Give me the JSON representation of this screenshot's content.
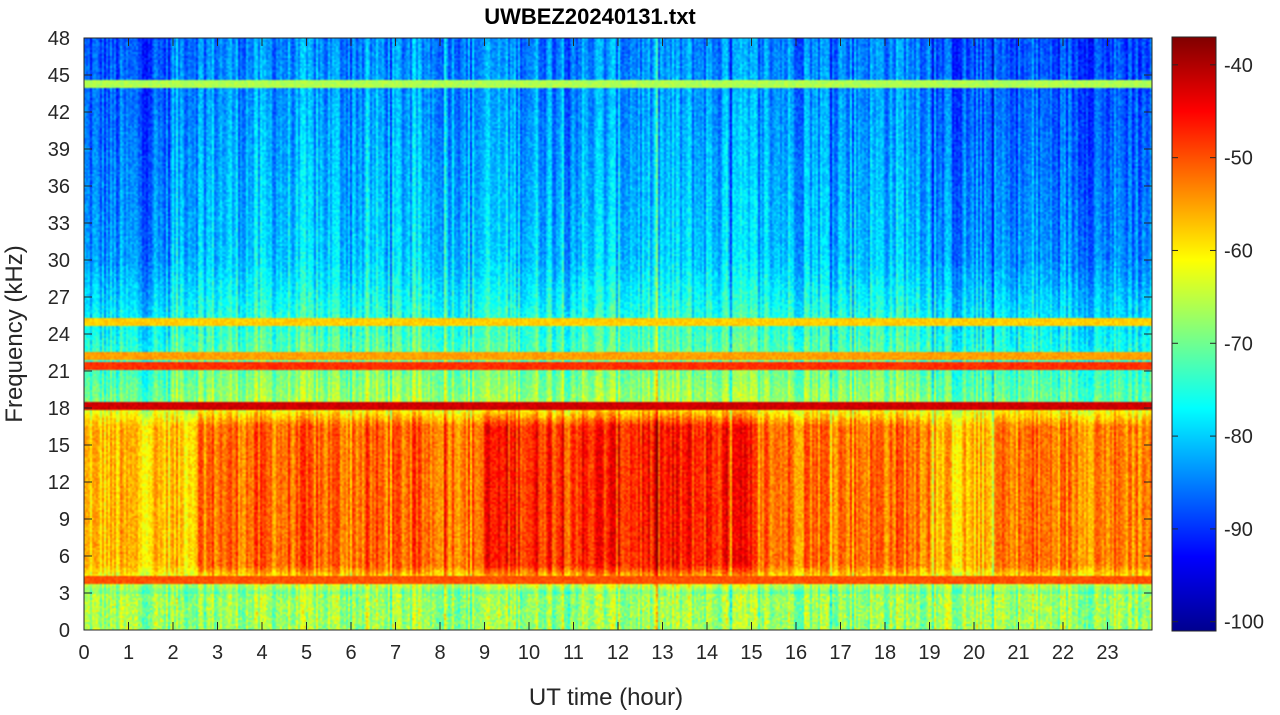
{
  "chart_data": {
    "type": "heatmap",
    "title": "UWBEZ20240131.txt",
    "xlabel": "UT time (hour)",
    "ylabel": "Frequency (kHz)",
    "xlim": [
      0,
      24
    ],
    "ylim": [
      0,
      48
    ],
    "x_ticks": [
      "0",
      "1",
      "2",
      "3",
      "4",
      "5",
      "6",
      "7",
      "8",
      "9",
      "10",
      "11",
      "12",
      "13",
      "14",
      "15",
      "16",
      "17",
      "18",
      "19",
      "20",
      "21",
      "22",
      "23"
    ],
    "y_ticks": [
      "0",
      "3",
      "6",
      "9",
      "12",
      "15",
      "18",
      "21",
      "24",
      "27",
      "30",
      "33",
      "36",
      "39",
      "42",
      "45",
      "48"
    ],
    "colorbar": {
      "label": "",
      "range": [
        -101,
        -37
      ],
      "ticks": [
        "-40",
        "-50",
        "-60",
        "-70",
        "-80",
        "-90",
        "-100"
      ],
      "colormap": "jet"
    },
    "grid": false,
    "features": {
      "broadband_band_khz": [
        4,
        18
      ],
      "broadband_peak_db": -47,
      "background_high_freq_db": -80,
      "narrowband_lines_khz": [
        {
          "freq": 4.0,
          "db": -50
        },
        {
          "freq": 18.2,
          "db": -42
        },
        {
          "freq": 21.4,
          "db": -48
        },
        {
          "freq": 22.2,
          "db": -55
        },
        {
          "freq": 25.0,
          "db": -58
        },
        {
          "freq": 44.3,
          "db": -66
        }
      ],
      "strongest_period_hours": [
        9,
        15
      ]
    }
  }
}
